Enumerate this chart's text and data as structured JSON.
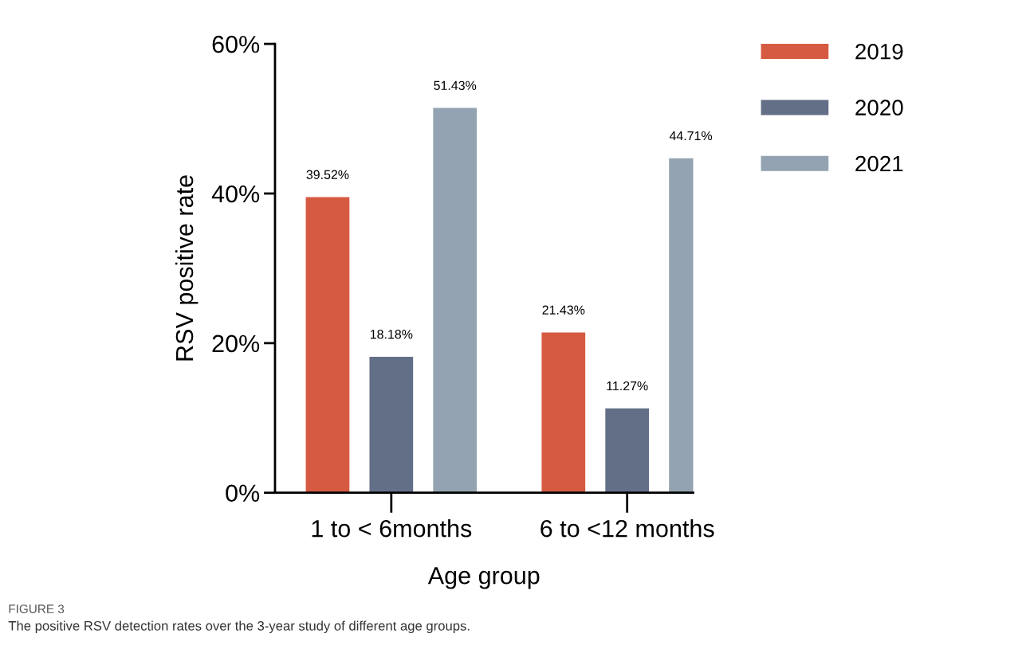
{
  "chart_data": {
    "type": "bar",
    "xlabel": "Age group",
    "ylabel": "RSV positive rate",
    "categories": [
      "1 to < 6months",
      "6 to <12 months"
    ],
    "series": [
      {
        "name": "2019",
        "color": "#d65a42",
        "values": [
          39.52,
          21.43
        ],
        "value_labels": [
          "39.52%",
          "21.43%"
        ]
      },
      {
        "name": "2020",
        "color": "#636f87",
        "values": [
          18.18,
          11.27
        ],
        "value_labels": [
          "18.18%",
          "11.27%"
        ]
      },
      {
        "name": "2021",
        "color": "#93a3b1",
        "values": [
          51.43,
          44.71
        ],
        "value_labels": [
          "51.43%",
          "44.71%"
        ]
      }
    ],
    "ylim": [
      0,
      60
    ],
    "yticks": [
      {
        "value": 0,
        "label": "0%"
      },
      {
        "value": 20,
        "label": "20%"
      },
      {
        "value": 40,
        "label": "40%"
      },
      {
        "value": 60,
        "label": "60%"
      }
    ],
    "grid": false,
    "legend": "right",
    "annotations": [
      "FIGURE 3",
      "The positive RSV detection rates over the 3-year study of different age groups."
    ]
  }
}
